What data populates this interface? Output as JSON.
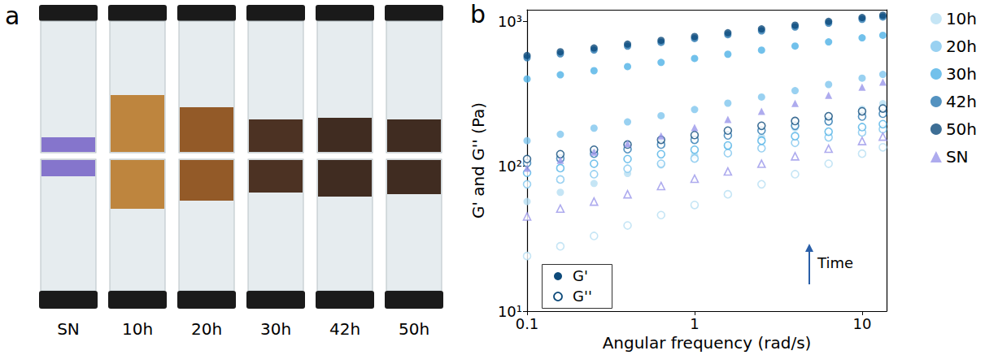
{
  "photo_panel": {
    "label": "a",
    "samples": [
      "SN",
      "10h",
      "20h",
      "30h",
      "42h",
      "50h"
    ]
  },
  "chart_data": {
    "type": "scatter",
    "panel_label": "b",
    "x_label": "Angular frequency (rad/s)",
    "y_label": "G' and G'' (Pa)",
    "annotations": [
      "Time"
    ],
    "log": true,
    "grid": false,
    "legend": "right",
    "xlim": [
      0.1,
      14
    ],
    "xticks": [
      0.1,
      1,
      10
    ],
    "ylim": [
      10,
      1200
    ],
    "yticks": [
      {
        "value": 10,
        "label": "10¹"
      },
      {
        "value": 100,
        "label": "10²"
      },
      {
        "value": 1000,
        "label": "10³"
      }
    ],
    "modulus_legend": [
      {
        "name": "G'",
        "marker": "circle"
      },
      {
        "name": "G''",
        "marker": "circle-open"
      }
    ],
    "x": [
      0.1,
      0.158,
      0.251,
      0.398,
      0.631,
      1,
      1.58,
      2.51,
      3.98,
      6.31,
      10,
      13.3
    ],
    "series": [
      {
        "name": "10h",
        "modulus": "G'",
        "color": "#b7def3",
        "marker": "circle",
        "values": [
          57,
          66,
          76,
          89,
          102,
          119,
          137,
          159,
          184,
          213,
          247,
          270
        ]
      },
      {
        "name": "10h",
        "modulus": "G''",
        "color": "#b7def3",
        "marker": "circle-open",
        "values": [
          24,
          28,
          33,
          39,
          46,
          54,
          64,
          75,
          88,
          104,
          122,
          135
        ]
      },
      {
        "name": "20h",
        "modulus": "G'",
        "color": "#7fc6ee",
        "marker": "circle",
        "values": [
          150,
          166,
          183,
          202,
          223,
          246,
          272,
          300,
          332,
          366,
          405,
          430
        ]
      },
      {
        "name": "20h",
        "modulus": "G''",
        "color": "#7fc6ee",
        "marker": "circle-open",
        "values": [
          75,
          81,
          88,
          96,
          104,
          113,
          123,
          133,
          145,
          158,
          171,
          180
        ]
      },
      {
        "name": "30h",
        "modulus": "G'",
        "color": "#4fb2e6",
        "marker": "circle",
        "values": [
          400,
          427,
          456,
          487,
          520,
          554,
          592,
          632,
          674,
          720,
          768,
          800
        ]
      },
      {
        "name": "30h",
        "modulus": "G''",
        "color": "#4fb2e6",
        "marker": "circle-open",
        "values": [
          90,
          97,
          104,
          112,
          121,
          130,
          139,
          150,
          161,
          173,
          186,
          195
        ]
      },
      {
        "name": "42h",
        "modulus": "G'",
        "color": "#2877b0",
        "marker": "circle",
        "values": [
          560,
          595,
          633,
          673,
          715,
          760,
          808,
          858,
          912,
          970,
          1031,
          1070
        ]
      },
      {
        "name": "42h",
        "modulus": "G''",
        "color": "#2877b0",
        "marker": "circle-open",
        "values": [
          105,
          113,
          122,
          131,
          141,
          152,
          163,
          176,
          190,
          204,
          220,
          230
        ]
      },
      {
        "name": "50h",
        "modulus": "G'",
        "color": "#0d4a7a",
        "marker": "circle",
        "values": [
          580,
          616,
          654,
          695,
          738,
          784,
          833,
          885,
          939,
          998,
          1060,
          1100
        ]
      },
      {
        "name": "50h",
        "modulus": "G''",
        "color": "#0d4a7a",
        "marker": "circle-open",
        "values": [
          112,
          121,
          130,
          141,
          152,
          164,
          176,
          190,
          205,
          221,
          239,
          250
        ]
      },
      {
        "name": "SN",
        "modulus": "G'",
        "color": "#9a96ea",
        "marker": "triangle",
        "values": [
          97,
          110,
          125,
          143,
          162,
          185,
          210,
          239,
          271,
          309,
          351,
          380
        ]
      },
      {
        "name": "SN",
        "modulus": "G''",
        "color": "#9a96ea",
        "marker": "triangle-open",
        "values": [
          45,
          51,
          57,
          64,
          73,
          82,
          92,
          104,
          117,
          132,
          149,
          160
        ]
      }
    ]
  }
}
